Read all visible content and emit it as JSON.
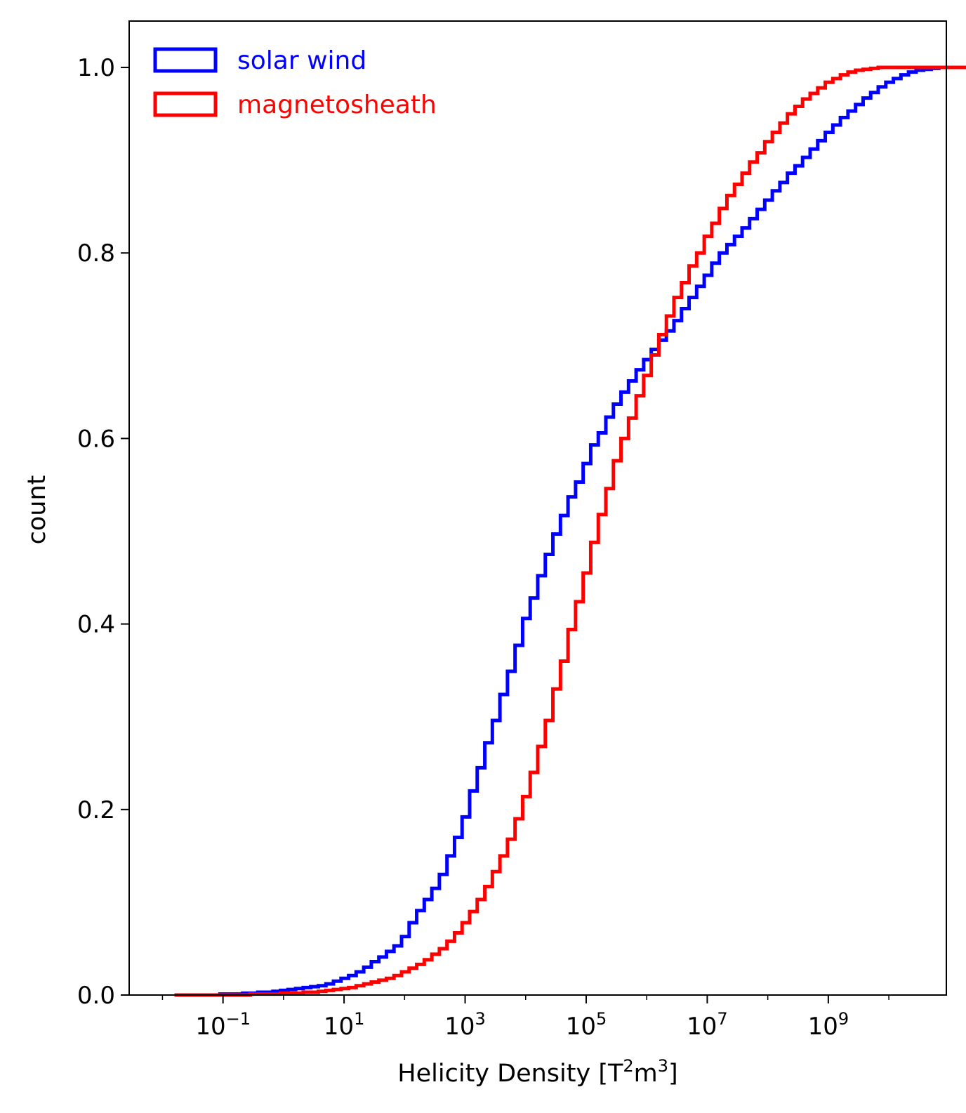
{
  "chart_data": {
    "type": "step",
    "title": "",
    "xlabel": {
      "base": "Helicity Density [T",
      "sup1": "2",
      "mid": "m",
      "sup2": "3",
      "end": "]"
    },
    "ylabel": "count",
    "xscale": "log",
    "xlim_log10": [
      -2.55,
      10.95
    ],
    "ylim": [
      0.0,
      1.05
    ],
    "x_ticks": [
      {
        "base": "10",
        "exp": "−1",
        "log10": -1
      },
      {
        "base": "10",
        "exp": "1",
        "log10": 1
      },
      {
        "base": "10",
        "exp": "3",
        "log10": 3
      },
      {
        "base": "10",
        "exp": "5",
        "log10": 5
      },
      {
        "base": "10",
        "exp": "7",
        "log10": 7
      },
      {
        "base": "10",
        "exp": "9",
        "log10": 9
      }
    ],
    "y_ticks": [
      "0.0",
      "0.2",
      "0.4",
      "0.6",
      "0.8",
      "1.0"
    ],
    "legend_position": "top-left",
    "series": [
      {
        "name": "solar wind",
        "color": "#0000ff",
        "bin_log10_start": -1.8,
        "bin_log10_width": 0.125,
        "cdf": [
          0.0,
          0.0,
          0.0,
          0.0,
          0.0,
          0.0,
          0.001,
          0.001,
          0.001,
          0.002,
          0.002,
          0.003,
          0.003,
          0.004,
          0.005,
          0.006,
          0.007,
          0.008,
          0.009,
          0.01,
          0.012,
          0.015,
          0.018,
          0.021,
          0.025,
          0.03,
          0.036,
          0.041,
          0.047,
          0.053,
          0.063,
          0.078,
          0.091,
          0.103,
          0.115,
          0.13,
          0.15,
          0.17,
          0.192,
          0.22,
          0.245,
          0.272,
          0.296,
          0.324,
          0.349,
          0.377,
          0.406,
          0.428,
          0.452,
          0.475,
          0.497,
          0.517,
          0.537,
          0.553,
          0.573,
          0.593,
          0.606,
          0.623,
          0.637,
          0.65,
          0.662,
          0.674,
          0.685,
          0.696,
          0.706,
          0.716,
          0.727,
          0.74,
          0.752,
          0.764,
          0.776,
          0.789,
          0.8,
          0.809,
          0.818,
          0.827,
          0.837,
          0.847,
          0.857,
          0.867,
          0.876,
          0.886,
          0.894,
          0.903,
          0.912,
          0.921,
          0.93,
          0.938,
          0.946,
          0.953,
          0.96,
          0.967,
          0.973,
          0.979,
          0.984,
          0.988,
          0.992,
          0.995,
          0.997,
          0.998,
          0.999,
          1.0,
          1.0,
          1.0,
          1.0,
          1.0,
          1.0,
          1.0,
          1.0,
          1.0,
          1.0,
          1.0,
          1.0,
          1.0,
          1.0,
          1.0,
          1.0,
          1.0,
          1.0,
          1.0
        ]
      },
      {
        "name": "magnetosheath",
        "color": "#ff0000",
        "bin_log10_start": -1.8,
        "bin_log10_width": 0.125,
        "cdf": [
          0.0,
          0.0,
          0.0,
          0.0,
          0.0,
          0.0,
          0.0,
          0.0,
          0.0,
          0.0,
          0.001,
          0.001,
          0.001,
          0.001,
          0.002,
          0.002,
          0.002,
          0.003,
          0.003,
          0.004,
          0.005,
          0.006,
          0.007,
          0.008,
          0.01,
          0.012,
          0.014,
          0.016,
          0.018,
          0.021,
          0.025,
          0.029,
          0.033,
          0.038,
          0.044,
          0.05,
          0.058,
          0.067,
          0.078,
          0.09,
          0.103,
          0.117,
          0.133,
          0.15,
          0.168,
          0.19,
          0.214,
          0.24,
          0.268,
          0.296,
          0.33,
          0.36,
          0.394,
          0.424,
          0.455,
          0.488,
          0.518,
          0.546,
          0.576,
          0.6,
          0.622,
          0.646,
          0.668,
          0.69,
          0.712,
          0.732,
          0.752,
          0.768,
          0.786,
          0.8,
          0.818,
          0.832,
          0.848,
          0.862,
          0.874,
          0.886,
          0.898,
          0.908,
          0.92,
          0.93,
          0.94,
          0.95,
          0.958,
          0.966,
          0.972,
          0.978,
          0.984,
          0.988,
          0.992,
          0.995,
          0.997,
          0.998,
          0.999,
          1.0,
          1.0,
          1.0,
          1.0,
          1.0,
          1.0,
          1.0,
          1.0,
          1.0,
          1.0,
          1.0,
          1.0,
          1.0,
          1.0,
          1.0,
          1.0,
          1.0,
          1.0,
          1.0,
          1.0,
          1.0,
          1.0,
          1.0,
          1.0,
          1.0,
          1.0,
          1.0
        ],
        "drop_to_zero_at_end": true
      }
    ]
  }
}
